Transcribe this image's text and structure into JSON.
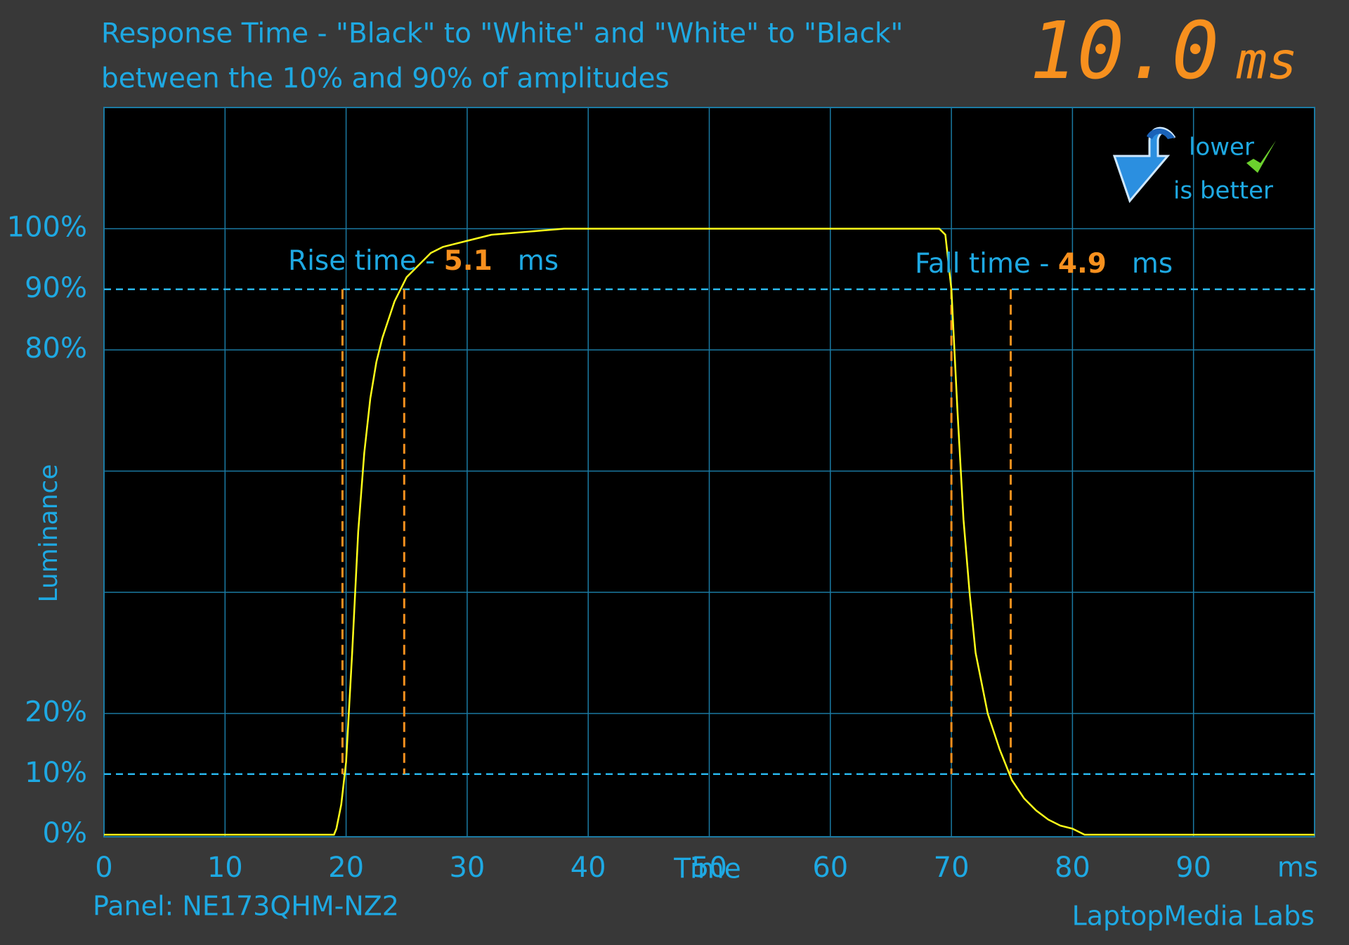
{
  "chart_data": {
    "type": "line",
    "title": "Response Time - \"Black\" to \"White\" and \"White\" to \"Black\"",
    "subtitle": "between the 10% and 90% of amplitudes",
    "score": 10,
    "score_label": "10.0",
    "score_unit": "ms",
    "badge": [
      "lower",
      "is better"
    ],
    "x_label": "Time",
    "x_unit": "ms",
    "y_label": "Luminance",
    "xlim": [
      0,
      100
    ],
    "xticks": [
      0,
      10,
      20,
      30,
      40,
      50,
      60,
      70,
      80,
      90
    ],
    "ylim": [
      0,
      120
    ],
    "yticks": [
      {
        "value": 0,
        "label": "0%"
      },
      {
        "value": 10,
        "label": "10%"
      },
      {
        "value": 20,
        "label": "20%"
      },
      {
        "value": 80,
        "label": "80%"
      },
      {
        "value": 90,
        "label": "90%"
      },
      {
        "value": 100,
        "label": "100%"
      }
    ],
    "xgrid": [
      10,
      20,
      30,
      40,
      50,
      60,
      70,
      80,
      90
    ],
    "ygrid": [
      20,
      40,
      60,
      80,
      100
    ],
    "reference_y": [
      10,
      90
    ],
    "grid": true,
    "color": "#ffff1a",
    "x": [
      0,
      19,
      19.2,
      19.6,
      20,
      20.5,
      21,
      21.5,
      22,
      22.5,
      23,
      23.5,
      24,
      24.5,
      25,
      26,
      27,
      28,
      30,
      32,
      35,
      38,
      69,
      69.5,
      70,
      70.5,
      71,
      71.5,
      72,
      73,
      74,
      75,
      76,
      77,
      78,
      79,
      80,
      81,
      100
    ],
    "values": [
      0,
      0,
      1,
      5,
      12,
      30,
      50,
      63,
      72,
      78,
      82,
      85,
      88,
      90,
      92,
      94,
      96,
      97,
      98,
      99,
      99.5,
      100,
      100,
      99,
      90,
      70,
      52,
      40,
      30,
      20,
      14,
      9,
      6,
      4,
      2.5,
      1.5,
      1,
      0,
      0
    ],
    "annotations": [
      {
        "text": "Rise time - ",
        "value": 5.1,
        "unit": "ms",
        "start": 19.7,
        "end": 24.8
      },
      {
        "text": "Fall time - ",
        "value": 4.9,
        "unit": "ms",
        "start": 70,
        "end": 74.9
      }
    ],
    "panel": "Panel: NE173QHM-NZ2",
    "credit": "LaptopMedia Labs"
  }
}
